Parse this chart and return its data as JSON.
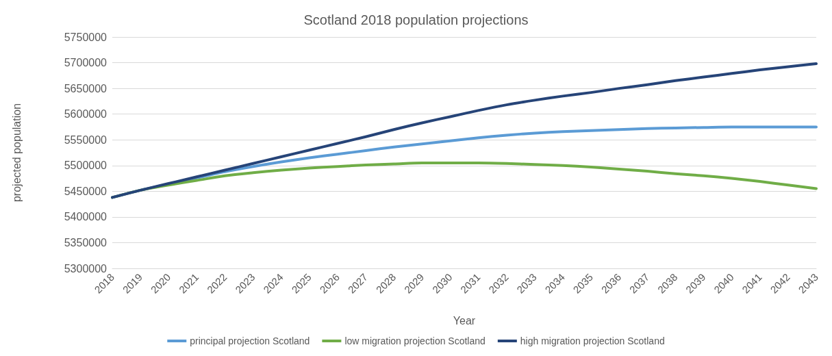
{
  "chart_data": {
    "type": "line",
    "title": "Scotland 2018 population projections",
    "xlabel": "Year",
    "ylabel": "projected population",
    "categories": [
      "2018",
      "2019",
      "2020",
      "2021",
      "2022",
      "2023",
      "2024",
      "2025",
      "2026",
      "2027",
      "2028",
      "2029",
      "2030",
      "2031",
      "2032",
      "2033",
      "2034",
      "2035",
      "2036",
      "2037",
      "2038",
      "2039",
      "2040",
      "2041",
      "2042",
      "2043"
    ],
    "series": [
      {
        "name": "principal projection Scotland",
        "color": "#5b9bd5",
        "values": [
          5438000,
          5452000,
          5464000,
          5476000,
          5488000,
          5498000,
          5507000,
          5515000,
          5522000,
          5529000,
          5536000,
          5542000,
          5548000,
          5554000,
          5559000,
          5563000,
          5566000,
          5568000,
          5570000,
          5572000,
          5573000,
          5574000,
          5575000,
          5575000,
          5575000,
          5575000
        ]
      },
      {
        "name": "low migration projection Scotland",
        "color": "#70ad47",
        "values": [
          5438000,
          5452000,
          5462000,
          5471000,
          5480000,
          5486000,
          5491000,
          5495000,
          5498000,
          5501000,
          5503000,
          5505000,
          5505000,
          5505000,
          5504000,
          5502000,
          5500000,
          5497000,
          5493000,
          5489000,
          5484000,
          5480000,
          5475000,
          5469000,
          5462000,
          5455000
        ]
      },
      {
        "name": "high migration projection Scotland",
        "color": "#264478",
        "values": [
          5438000,
          5452000,
          5465000,
          5478000,
          5491000,
          5504000,
          5517000,
          5530000,
          5543000,
          5556000,
          5570000,
          5583000,
          5595000,
          5607000,
          5618000,
          5627000,
          5635000,
          5642000,
          5650000,
          5657000,
          5665000,
          5672000,
          5679000,
          5686000,
          5692000,
          5698000
        ]
      }
    ],
    "ylim": [
      5300000,
      5750000
    ],
    "yticks": [
      5300000,
      5350000,
      5400000,
      5450000,
      5500000,
      5550000,
      5600000,
      5650000,
      5700000,
      5750000
    ],
    "grid": "y",
    "legend": "bottom",
    "marker": "none",
    "line_style": "solid"
  }
}
